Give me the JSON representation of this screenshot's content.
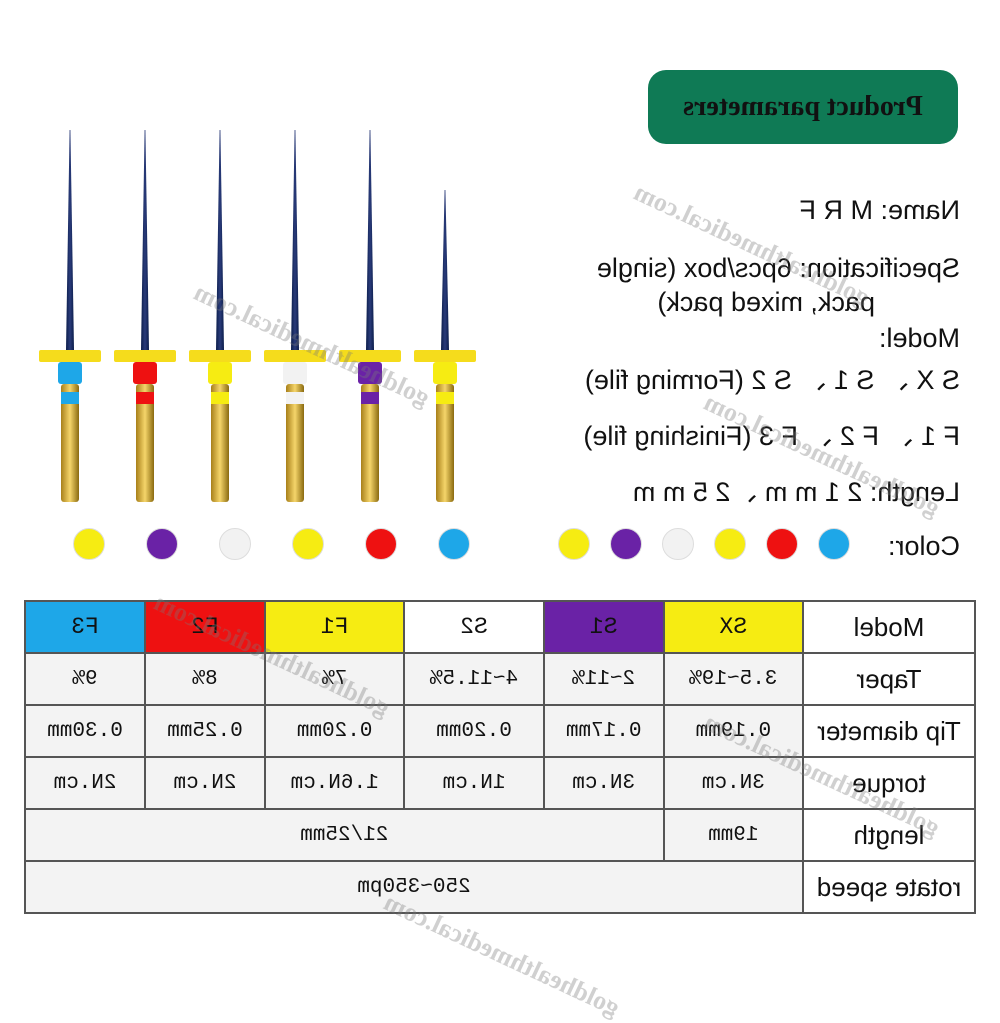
{
  "banner": {
    "title": "Product parameters"
  },
  "info": {
    "name": "Name:   M R F",
    "spec_line1": "Specification: 6pcs/box (single",
    "spec_line2": "pack, mixed pack)",
    "model_label": "Model:",
    "forming": "S X 、 S 1 、 S 2    (Forming file)",
    "finishing": "F 1  、 F 2 、 F 3   (Finishing file)",
    "length": "Length: 2 1 m m 、2 5 m m",
    "color_label": "Color:"
  },
  "colors": {
    "blue": "#1ea7e8",
    "red": "#ee1111",
    "yellow": "#f6ec12",
    "white": "#f2f2f2",
    "purple": "#6a22a6",
    "gold": "#c9a43a",
    "green": "#0f7a55"
  },
  "dots_left": [
    "#1ea7e8",
    "#ee1111",
    "#f6ec12",
    "#f2f2f2",
    "#6a22a6",
    "#f6ec12"
  ],
  "dots_right": [
    "#1ea7e8",
    "#ee1111",
    "#f6ec12",
    "#f2f2f2",
    "#6a22a6",
    "#f6ec12"
  ],
  "files": [
    {
      "collar": "#f6ec12",
      "band": "#f6ec12"
    },
    {
      "collar": "#6a22a6",
      "band": "#6a22a6"
    },
    {
      "collar": "#f2f2f2",
      "band": "#f2f2f2"
    },
    {
      "collar": "#f6ec12",
      "band": "#f6ec12"
    },
    {
      "collar": "#ee1111",
      "band": "#ee1111"
    },
    {
      "collar": "#1ea7e8",
      "band": "#1ea7e8"
    }
  ],
  "watermarks": [
    "goldhealthmedical.com",
    "goldhealthmedical.com",
    "goldhealthmedical.com",
    "goldhealthmedical.com",
    "goldhealthmedical.com",
    "goldhealthmedical.com"
  ],
  "table": {
    "model_header": "Model",
    "models": [
      {
        "name": "SX",
        "color": "#f6ec12"
      },
      {
        "name": "S1",
        "color": "#6a22a6"
      },
      {
        "name": "S2",
        "color": "#ffffff"
      },
      {
        "name": "F1",
        "color": "#f6ec12"
      },
      {
        "name": "F2",
        "color": "#ee1111"
      },
      {
        "name": "F3",
        "color": "#1ea7e8"
      }
    ],
    "taper_header": "Taper",
    "taper": [
      "3.5~19%",
      "2~11%",
      "4~11.5%",
      "7%",
      "8%",
      "9%"
    ],
    "tip_header": "Tip diameter",
    "tip": [
      "0.19mm",
      "0.17mm",
      "0.20mm",
      "0.20mm",
      "0.25mm",
      "0.30mm"
    ],
    "torque_header": "torque",
    "torque": [
      "3N.cm",
      "3N.cm",
      "1N.cm",
      "1.6N.cm",
      "2N.cm",
      "2N.cm"
    ],
    "length_header": "length",
    "length_sx": "19mm",
    "length_rest": "21/25mm",
    "speed_header": "rotate speed",
    "speed": "250~350pm"
  }
}
